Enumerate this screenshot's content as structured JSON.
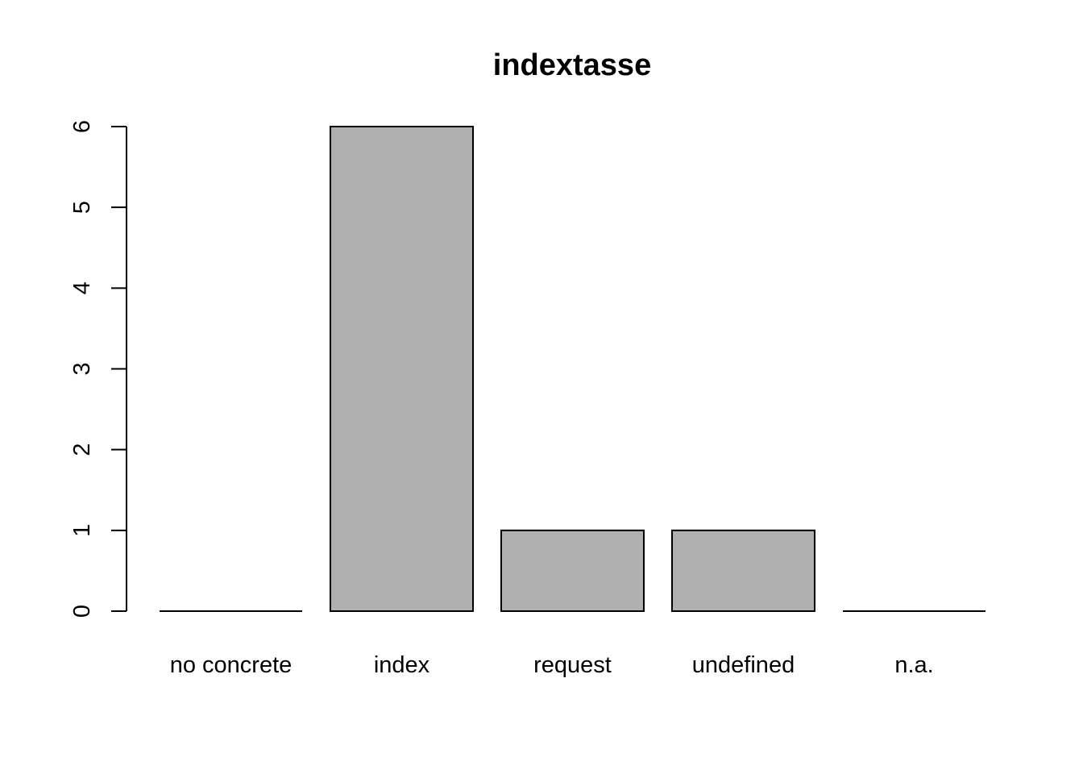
{
  "chart_data": {
    "type": "bar",
    "title": "indextasse",
    "xlabel": "",
    "ylabel": "",
    "categories": [
      "no concrete",
      "index",
      "request",
      "undefined",
      "n.a."
    ],
    "values": [
      0,
      6,
      1,
      1,
      0
    ],
    "ylim": [
      0,
      6
    ],
    "yticks": [
      "0",
      "1",
      "2",
      "3",
      "4",
      "5",
      "6"
    ],
    "grid": false,
    "legend": "none",
    "colors": {
      "bar_fill": "#b0b0b0",
      "bar_stroke": "#000000",
      "axis": "#000000"
    }
  }
}
